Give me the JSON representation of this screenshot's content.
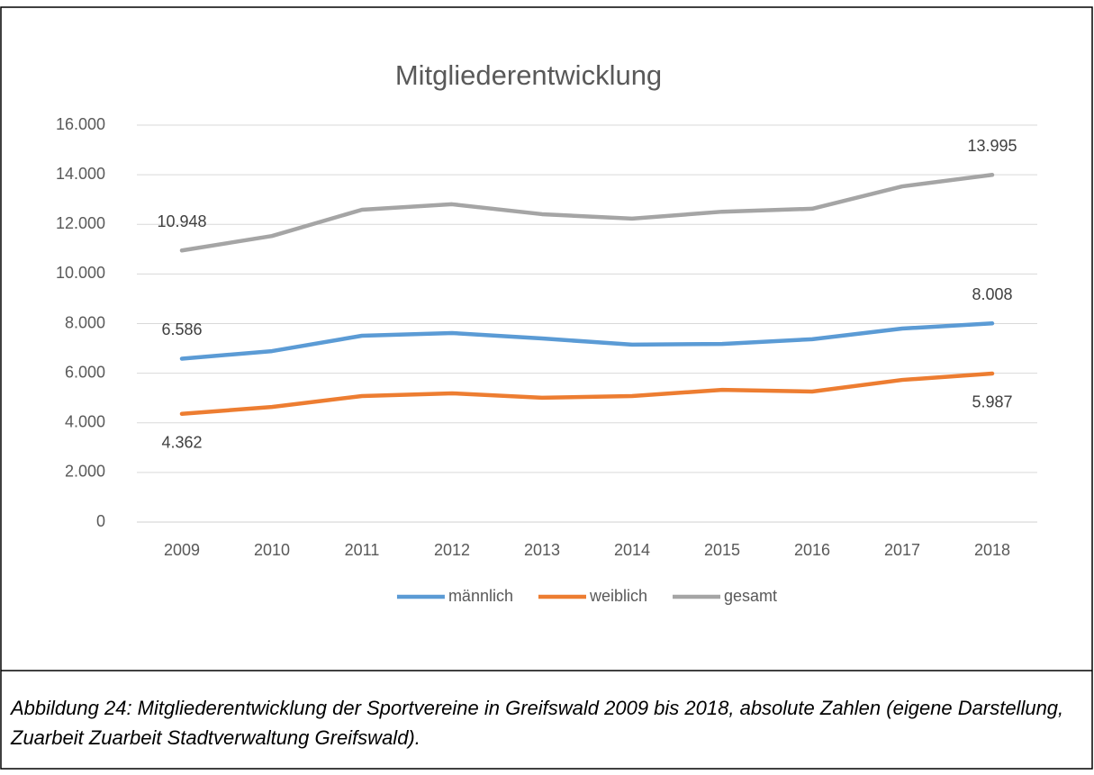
{
  "chart_data": {
    "type": "line",
    "title": "Mitgliederentwicklung",
    "categories": [
      "2009",
      "2010",
      "2011",
      "2012",
      "2013",
      "2014",
      "2015",
      "2016",
      "2017",
      "2018"
    ],
    "series": [
      {
        "name": "männlich",
        "color": "#5b9bd5",
        "values": [
          6586,
          6890,
          7510,
          7620,
          7400,
          7150,
          7180,
          7370,
          7800,
          8008
        ],
        "value_labels": [
          "6.586",
          null,
          null,
          null,
          null,
          null,
          null,
          null,
          null,
          "8.008"
        ]
      },
      {
        "name": "weiblich",
        "color": "#ed7d31",
        "values": [
          4362,
          4640,
          5080,
          5190,
          5010,
          5080,
          5330,
          5260,
          5730,
          5987
        ],
        "value_labels": [
          "4.362",
          null,
          null,
          null,
          null,
          null,
          null,
          null,
          null,
          "5.987"
        ]
      },
      {
        "name": "gesamt",
        "color": "#a5a5a5",
        "values": [
          10948,
          11530,
          12590,
          12810,
          12410,
          12230,
          12510,
          12630,
          13530,
          13995
        ],
        "value_labels": [
          "10.948",
          null,
          null,
          null,
          null,
          null,
          null,
          null,
          null,
          "13.995"
        ]
      }
    ],
    "ylim": [
      0,
      16000
    ],
    "yticks": [
      0,
      {
        "value": 2000,
        "label": "2.000"
      },
      {
        "value": 4000,
        "label": "4.000"
      },
      {
        "value": 6000,
        "label": "6.000"
      },
      {
        "value": 8000,
        "label": "8.000"
      },
      {
        "value": 10000,
        "label": "10.000"
      },
      {
        "value": 12000,
        "label": "12.000"
      },
      {
        "value": 14000,
        "label": "14.000"
      },
      {
        "value": 16000,
        "label": "16.000"
      }
    ],
    "grid": true,
    "legend": "bottom",
    "caption": "Abbildung 24: Mitgliederentwicklung der Sportvereine in Greifswald 2009 bis 2018, absolute Zahlen (eigene Darstellung, Zuarbeit Zuarbeit Stadtverwaltung Greifswald)."
  }
}
